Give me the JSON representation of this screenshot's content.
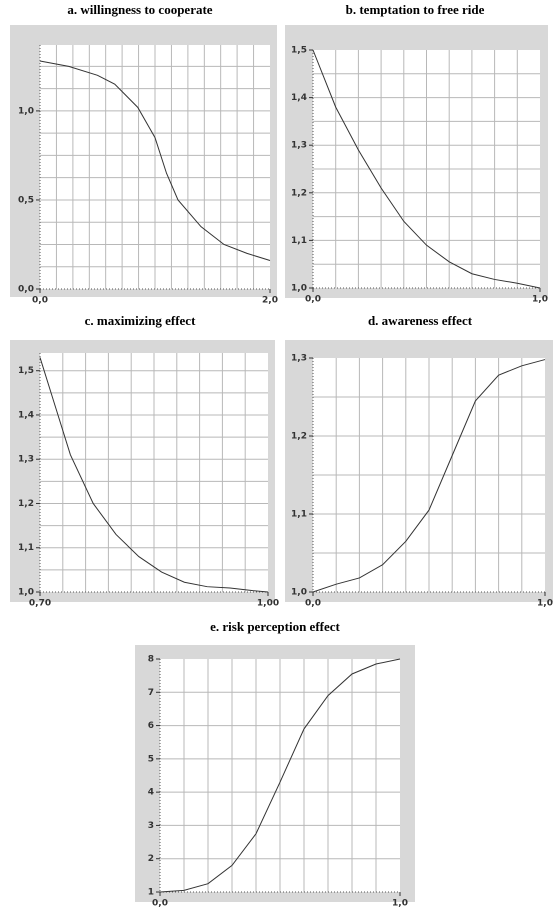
{
  "chart_data": [
    {
      "type": "line",
      "title": "a. willingness to cooperate",
      "color": "#333333",
      "x": [
        0,
        0.25,
        0.5,
        0.65,
        0.85,
        1.0,
        1.1,
        1.2,
        1.4,
        1.6,
        1.8,
        2.0
      ],
      "values": [
        1.28,
        1.25,
        1.2,
        1.15,
        1.02,
        0.85,
        0.65,
        0.5,
        0.35,
        0.25,
        0.2,
        0.16
      ],
      "xlim": [
        0,
        2
      ],
      "ylim": [
        0,
        1.37
      ],
      "xticks": [
        {
          "value": 0,
          "label": "0,0"
        },
        {
          "value": 2,
          "label": "2,0"
        }
      ],
      "yticks": [
        {
          "value": 0,
          "label": "0,0"
        },
        {
          "value": 0.5,
          "label": "0,5"
        },
        {
          "value": 1,
          "label": "1,0"
        }
      ],
      "xgrid": [
        0.143,
        0.286,
        0.429,
        0.571,
        0.714,
        0.857,
        1.0,
        1.143,
        1.286,
        1.429,
        1.571,
        1.714,
        1.857
      ],
      "ygrid": [
        0.125,
        0.25,
        0.375,
        0.5,
        0.625,
        0.75,
        0.875,
        1.0,
        1.125,
        1.25
      ]
    },
    {
      "type": "line",
      "title": "b. temptation to free ride",
      "color": "#333333",
      "x": [
        0,
        0.1,
        0.2,
        0.3,
        0.4,
        0.5,
        0.6,
        0.7,
        0.8,
        0.9,
        1.0
      ],
      "values": [
        1.5,
        1.38,
        1.29,
        1.21,
        1.14,
        1.09,
        1.055,
        1.03,
        1.018,
        1.01,
        1.0
      ],
      "xlim": [
        0,
        1
      ],
      "ylim": [
        1.0,
        1.5
      ],
      "xticks": [
        {
          "value": 0,
          "label": "0,0"
        },
        {
          "value": 1,
          "label": "1,0"
        }
      ],
      "yticks": [
        {
          "value": 1.0,
          "label": "1,0"
        },
        {
          "value": 1.1,
          "label": "1,1"
        },
        {
          "value": 1.2,
          "label": "1,2"
        },
        {
          "value": 1.3,
          "label": "1,3"
        },
        {
          "value": 1.4,
          "label": "1,4"
        },
        {
          "value": 1.5,
          "label": "1,5"
        }
      ],
      "xgrid": [
        0.1,
        0.2,
        0.3,
        0.4,
        0.5,
        0.6,
        0.7,
        0.8,
        0.9
      ],
      "ygrid": [
        1.05,
        1.1,
        1.15,
        1.2,
        1.25,
        1.3,
        1.35,
        1.4,
        1.45
      ]
    },
    {
      "type": "line",
      "title": "c. maximizing effect",
      "color": "#333333",
      "x": [
        0.7,
        0.72,
        0.74,
        0.77,
        0.8,
        0.83,
        0.86,
        0.89,
        0.92,
        0.95,
        0.98,
        1.0
      ],
      "values": [
        1.53,
        1.42,
        1.31,
        1.2,
        1.13,
        1.08,
        1.045,
        1.022,
        1.012,
        1.009,
        1.003,
        1.0
      ],
      "xlim": [
        0.7,
        1.0
      ],
      "ylim": [
        1.0,
        1.54
      ],
      "xticks": [
        {
          "value": 0.7,
          "label": "0,70"
        },
        {
          "value": 1.0,
          "label": "1,00"
        }
      ],
      "yticks": [
        {
          "value": 1.0,
          "label": "1,0"
        },
        {
          "value": 1.1,
          "label": "1,1"
        },
        {
          "value": 1.2,
          "label": "1,2"
        },
        {
          "value": 1.3,
          "label": "1,3"
        },
        {
          "value": 1.4,
          "label": "1,4"
        },
        {
          "value": 1.5,
          "label": "1,5"
        }
      ],
      "xgrid": [
        0.73,
        0.76,
        0.79,
        0.82,
        0.85,
        0.88,
        0.91,
        0.94,
        0.97
      ],
      "ygrid": [
        1.05,
        1.1,
        1.15,
        1.2,
        1.25,
        1.3,
        1.35,
        1.4,
        1.45,
        1.5
      ]
    },
    {
      "type": "line",
      "title": "d. awareness effect",
      "color": "#333333",
      "x": [
        0,
        0.1,
        0.2,
        0.3,
        0.4,
        0.5,
        0.6,
        0.7,
        0.8,
        0.9,
        1.0
      ],
      "values": [
        1.0,
        1.01,
        1.018,
        1.035,
        1.065,
        1.105,
        1.175,
        1.245,
        1.278,
        1.29,
        1.298
      ],
      "xlim": [
        0,
        1
      ],
      "ylim": [
        1.0,
        1.3
      ],
      "xticks": [
        {
          "value": 0,
          "label": "0,0"
        },
        {
          "value": 1,
          "label": "1,0"
        }
      ],
      "yticks": [
        {
          "value": 1.0,
          "label": "1,0"
        },
        {
          "value": 1.1,
          "label": "1,1"
        },
        {
          "value": 1.2,
          "label": "1,2"
        },
        {
          "value": 1.3,
          "label": "1,3"
        }
      ],
      "xgrid": [
        0.1,
        0.2,
        0.3,
        0.4,
        0.5,
        0.6,
        0.7,
        0.8,
        0.9
      ],
      "ygrid": [
        1.05,
        1.1,
        1.15,
        1.2,
        1.25
      ]
    },
    {
      "type": "line",
      "title": "e. risk perception effect",
      "color": "#333333",
      "x": [
        0,
        0.1,
        0.2,
        0.3,
        0.4,
        0.5,
        0.6,
        0.7,
        0.8,
        0.9,
        1.0
      ],
      "values": [
        1.0,
        1.05,
        1.25,
        1.8,
        2.75,
        4.3,
        5.9,
        6.9,
        7.55,
        7.85,
        8.0
      ],
      "xlim": [
        0,
        1
      ],
      "ylim": [
        1,
        8
      ],
      "xticks": [
        {
          "value": 0,
          "label": "0,0"
        },
        {
          "value": 1,
          "label": "1,0"
        }
      ],
      "yticks": [
        1,
        2,
        3,
        4,
        5,
        6,
        7,
        8
      ],
      "xgrid": [
        0.1,
        0.2,
        0.3,
        0.4,
        0.5,
        0.6,
        0.7,
        0.8,
        0.9
      ],
      "ygrid": [
        2,
        3,
        4,
        5,
        6,
        7
      ]
    }
  ]
}
